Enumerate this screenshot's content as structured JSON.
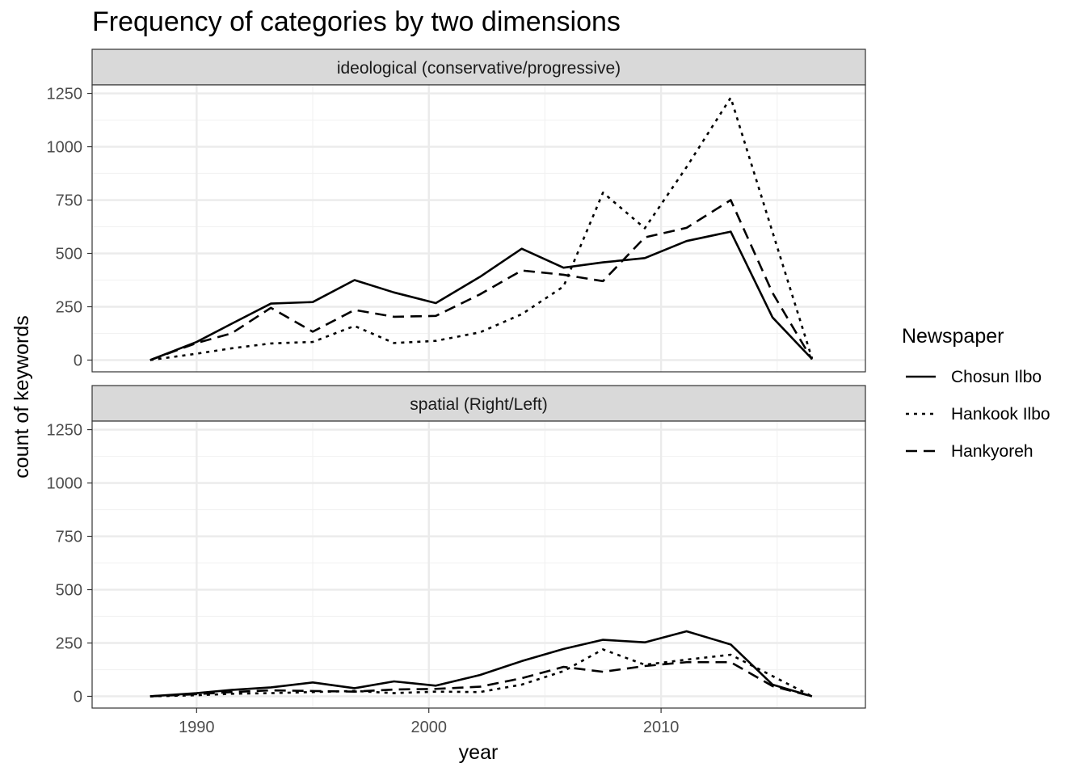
{
  "chart_data": {
    "type": "line",
    "title": "Frequency of categories by two dimensions",
    "xlabel": "year",
    "ylabel": "count of keywords",
    "xlim": [
      1985.5,
      2018.8
    ],
    "ylim": [
      -55,
      1290
    ],
    "x_ticks": [
      1990,
      2000,
      2010
    ],
    "y_ticks": [
      0,
      250,
      500,
      750,
      1000,
      1250
    ],
    "grid": true,
    "legend": {
      "title": "Newspaper",
      "placement": "right",
      "entries": [
        {
          "name": "Chosun Ilbo",
          "dash": "solid"
        },
        {
          "name": "Hankook Ilbo",
          "dash": "dotted"
        },
        {
          "name": "Hankyoreh",
          "dash": "dashed"
        }
      ]
    },
    "x": [
      1988,
      1990,
      1991.5,
      1993.2,
      1995,
      1996.8,
      1998.5,
      2000.3,
      2002.2,
      2004,
      2005.8,
      2007.5,
      2009.3,
      2011.1,
      2013,
      2014.8,
      2016.5
    ],
    "panels": [
      {
        "label": "ideological (conservative/progressive)",
        "series": [
          {
            "name": "Chosun Ilbo",
            "values": [
              0,
              85,
              170,
              265,
              272,
              375,
              317,
              267,
              390,
              522,
              433,
              458,
              478,
              558,
              602,
              200,
              5
            ]
          },
          {
            "name": "Hankook Ilbo",
            "values": [
              0,
              30,
              55,
              78,
              85,
              160,
              80,
              90,
              130,
              215,
              345,
              785,
              618,
              905,
              1230,
              600,
              8
            ]
          },
          {
            "name": "Hankyoreh",
            "values": [
              0,
              80,
              125,
              245,
              133,
              235,
              203,
              207,
              308,
              420,
              400,
              370,
              575,
              620,
              750,
              315,
              3
            ]
          }
        ]
      },
      {
        "label": "spatial (Right/Left)",
        "series": [
          {
            "name": "Chosun Ilbo",
            "values": [
              0,
              15,
              30,
              42,
              65,
              38,
              70,
              50,
              100,
              165,
              222,
              265,
              253,
              305,
              243,
              55,
              0
            ]
          },
          {
            "name": "Hankook Ilbo",
            "values": [
              0,
              5,
              12,
              15,
              20,
              25,
              15,
              22,
              20,
              55,
              118,
              220,
              148,
              172,
              195,
              95,
              0
            ]
          },
          {
            "name": "Hankyoreh",
            "values": [
              0,
              10,
              20,
              28,
              25,
              22,
              32,
              35,
              45,
              85,
              138,
              115,
              142,
              160,
              160,
              48,
              0
            ]
          }
        ]
      }
    ]
  }
}
